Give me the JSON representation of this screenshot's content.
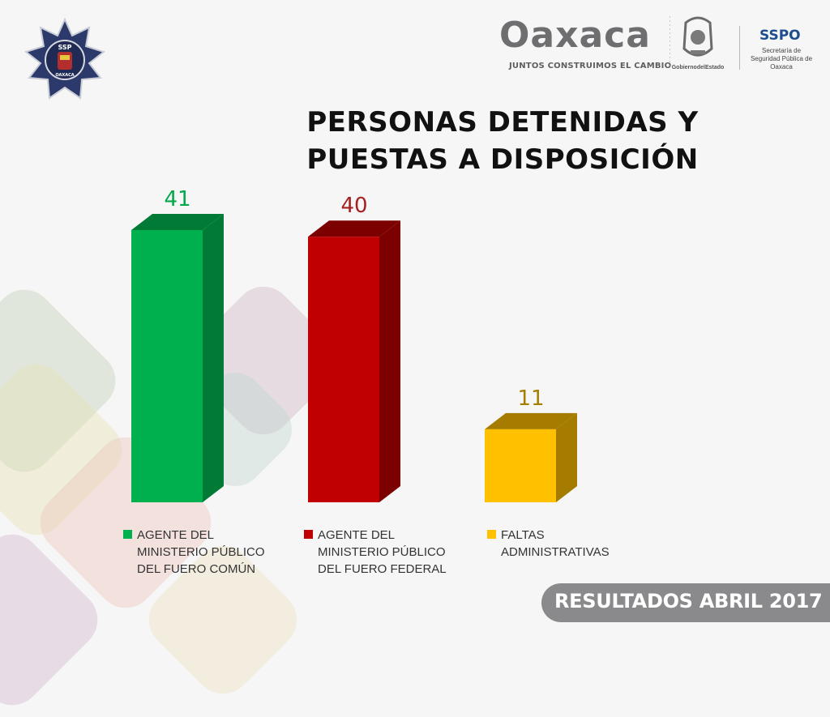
{
  "header": {
    "badge_text": "SSP",
    "badge_subtext": "OAXACA",
    "brand_name": "Oaxaca",
    "brand_tagline": "JUNTOS CONSTRUIMOS EL CAMBIO",
    "seal_caption": "GobiernodelEstado",
    "agency_acronym": "SSPO",
    "agency_name": "Secretaría de Seguridad Pública de Oaxaca"
  },
  "chart_data": {
    "type": "bar",
    "title": "PERSONAS DETENIDAS Y PUESTAS A DISPOSICIÓN",
    "categories": [
      "AGENTE DEL MINISTERIO PÚBLICO DEL FUERO COMÚN",
      "AGENTE DEL MINISTERIO PÚBLICO DEL FUERO FEDERAL",
      "FALTAS ADMINISTRATIVAS"
    ],
    "values": [
      41,
      40,
      11
    ],
    "value_labels": [
      "41",
      "40",
      "11"
    ],
    "colors": [
      "#00b04f",
      "#c00000",
      "#ffc000"
    ],
    "side_colors": [
      "#007a35",
      "#7c0000",
      "#a67c00"
    ],
    "label_colors": [
      "#00a84a",
      "#a52020",
      "#a57d00"
    ],
    "ylim": [
      0,
      41
    ],
    "xlabel": "",
    "ylabel": "",
    "grid": false,
    "legend_position": "bottom"
  },
  "footer": {
    "label": "RESULTADOS ABRIL 2017"
  }
}
